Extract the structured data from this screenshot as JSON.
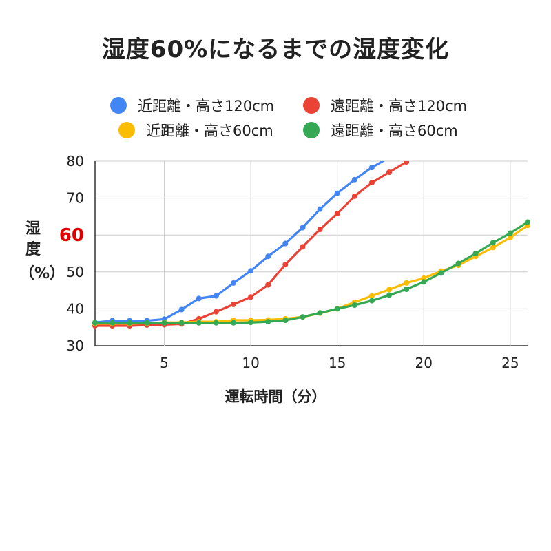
{
  "chart_data": {
    "type": "line",
    "title": "湿度60%になるまでの湿度変化",
    "xlabel": "運転時間（分）",
    "ylabel_top": "湿",
    "ylabel_mid": "度",
    "ylabel_highlight": "60",
    "ylabel_paren": "（%）",
    "xlim": [
      1,
      26
    ],
    "ylim": [
      30,
      80
    ],
    "x_ticks": [
      5,
      10,
      15,
      20,
      25
    ],
    "y_ticks": [
      30,
      40,
      50,
      70,
      80
    ],
    "y_highlight_tick": 60,
    "grid": true,
    "legend_position": "top",
    "x": [
      1,
      2,
      3,
      4,
      5,
      6,
      7,
      8,
      9,
      10,
      11,
      12,
      13,
      14,
      15,
      16,
      17,
      18,
      19,
      20,
      21,
      22,
      23,
      24,
      25,
      26
    ],
    "series": [
      {
        "name": "近距離・高さ120cm",
        "color": "#4285F4",
        "values": [
          36.3,
          36.8,
          36.8,
          36.8,
          37.2,
          39.8,
          42.8,
          43.5,
          47.0,
          50.3,
          54.2,
          57.7,
          62.0,
          67.0,
          71.3,
          75.0,
          78.3,
          81.0,
          null,
          null,
          null,
          null,
          null,
          null,
          null,
          null
        ]
      },
      {
        "name": "遠距離・高さ120cm",
        "color": "#EA4335",
        "values": [
          35.4,
          35.4,
          35.4,
          35.6,
          35.7,
          35.9,
          37.3,
          39.2,
          41.2,
          43.2,
          46.5,
          52.0,
          56.8,
          61.5,
          65.8,
          70.5,
          74.2,
          77.0,
          79.8,
          null,
          null,
          null,
          null,
          null,
          null,
          null
        ]
      },
      {
        "name": "近距離・高さ60cm",
        "color": "#FBBC04",
        "values": [
          36.0,
          36.0,
          36.0,
          36.1,
          36.3,
          36.3,
          36.5,
          36.5,
          36.9,
          36.9,
          37.0,
          37.3,
          37.8,
          38.8,
          40.0,
          41.8,
          43.5,
          45.2,
          47.0,
          48.3,
          50.2,
          51.8,
          54.2,
          56.6,
          59.3,
          62.6
        ]
      },
      {
        "name": "遠距離・高さ60cm",
        "color": "#34A853",
        "values": [
          36.2,
          36.2,
          36.2,
          36.2,
          36.2,
          36.2,
          36.2,
          36.2,
          36.2,
          36.3,
          36.5,
          36.9,
          37.8,
          38.9,
          40.0,
          41.0,
          42.2,
          43.7,
          45.3,
          47.3,
          49.7,
          52.3,
          55.0,
          57.9,
          60.5,
          63.5
        ]
      }
    ]
  }
}
